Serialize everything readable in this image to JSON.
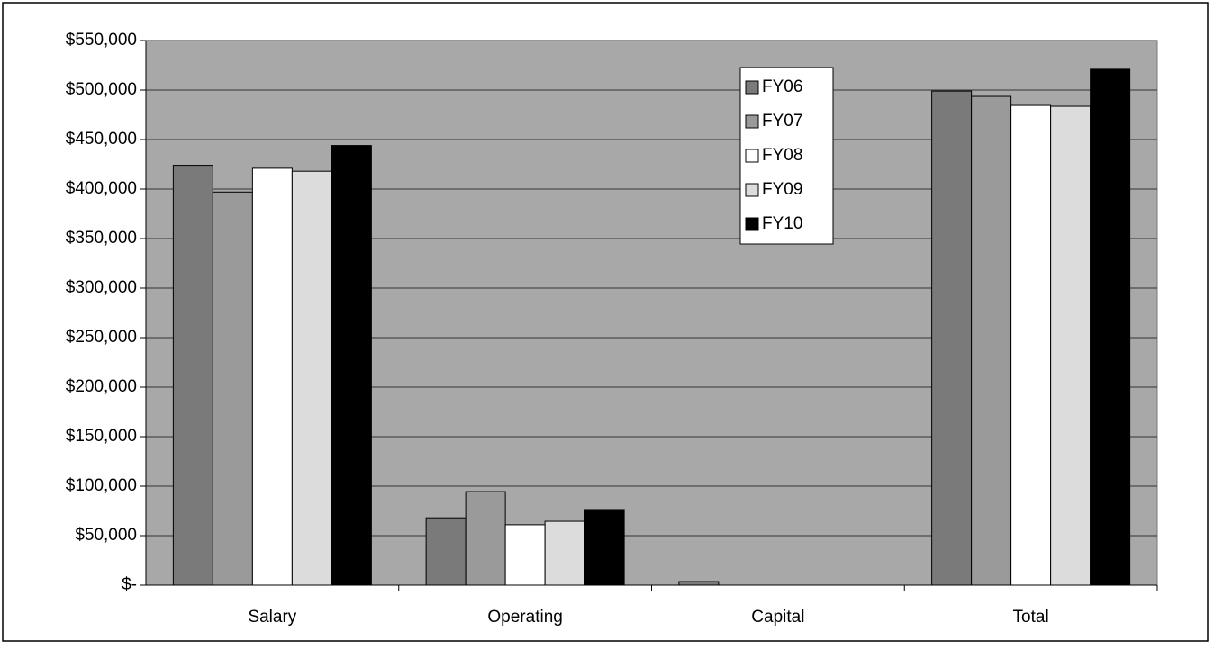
{
  "chart_data": {
    "type": "bar",
    "categories": [
      "Salary",
      "Operating",
      "Capital",
      "Total"
    ],
    "series": [
      {
        "name": "FY06",
        "color": "#7a7a7a",
        "values": [
          424000,
          68000,
          3600,
          499000
        ]
      },
      {
        "name": "FY07",
        "color": "#9a9a9a",
        "values": [
          397000,
          94500,
          0,
          493600
        ]
      },
      {
        "name": "FY08",
        "color": "#ffffff",
        "values": [
          421000,
          61000,
          0,
          484500
        ]
      },
      {
        "name": "FY09",
        "color": "#dcdcdc",
        "values": [
          418000,
          64500,
          0,
          483600
        ]
      },
      {
        "name": "FY10",
        "color": "#000000",
        "values": [
          444000,
          76400,
          0,
          521000
        ]
      }
    ],
    "ylim": [
      0,
      550000
    ],
    "yticks": [
      {
        "value": 0,
        "label": "$-"
      },
      {
        "value": 50000,
        "label": "$50,000"
      },
      {
        "value": 100000,
        "label": "$100,000"
      },
      {
        "value": 150000,
        "label": "$150,000"
      },
      {
        "value": 200000,
        "label": "$200,000"
      },
      {
        "value": 250000,
        "label": "$250,000"
      },
      {
        "value": 300000,
        "label": "$300,000"
      },
      {
        "value": 350000,
        "label": "$350,000"
      },
      {
        "value": 400000,
        "label": "$400,000"
      },
      {
        "value": 450000,
        "label": "$450,000"
      },
      {
        "value": 500000,
        "label": "$500,000"
      },
      {
        "value": 550000,
        "label": "$550,000"
      }
    ],
    "grid": true,
    "legend": "top-right"
  }
}
